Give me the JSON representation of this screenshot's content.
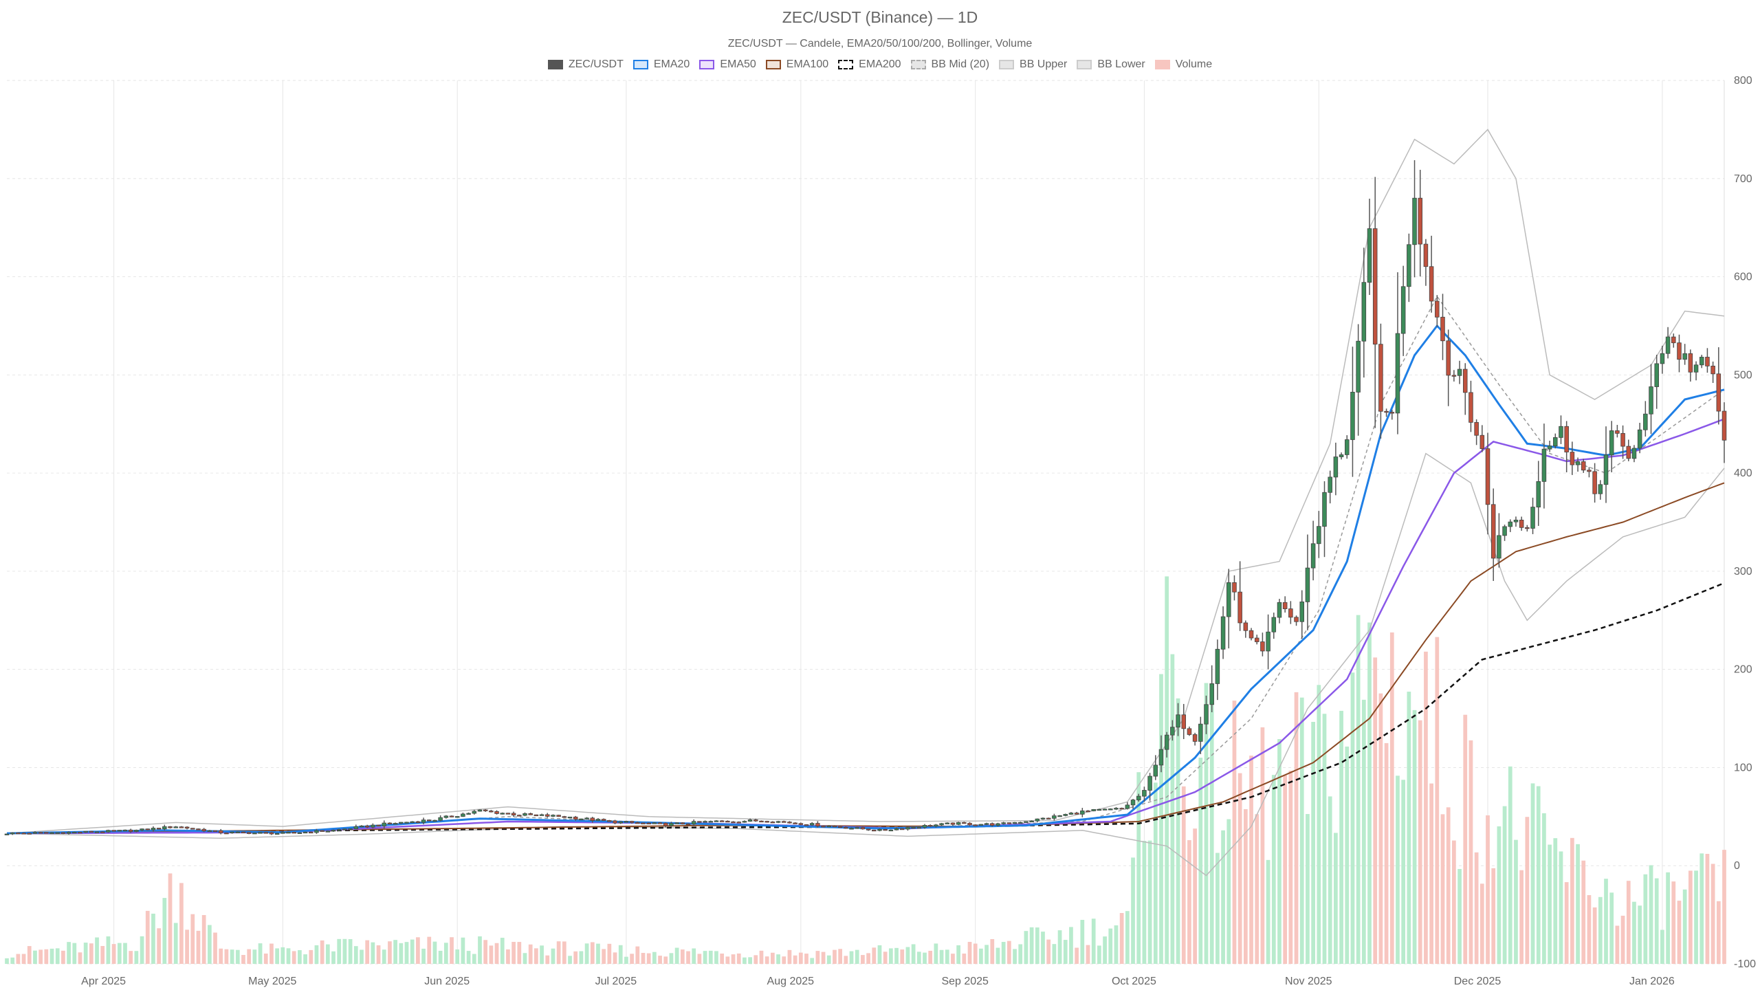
{
  "chart_data": {
    "type": "candlestick",
    "title": "ZEC/USDT (Binance) — 1D",
    "subtitle": "ZEC/USDT — Candele, EMA20/50/100/200, Bollinger, Volume",
    "ylim": [
      -100,
      800
    ],
    "y_ticks": [
      "800",
      "700",
      "600",
      "500",
      "400",
      "300",
      "200",
      "100",
      "0",
      "-100"
    ],
    "y_tick_values": [
      800,
      700,
      600,
      500,
      400,
      300,
      200,
      100,
      0,
      -100
    ],
    "x_range": [
      "2025-03-13",
      "2026-01-12"
    ],
    "x_ticks": [
      {
        "date": "2025-04-01",
        "label": "Apr 2025"
      },
      {
        "date": "2025-05-01",
        "label": "May 2025"
      },
      {
        "date": "2025-06-01",
        "label": "Jun 2025"
      },
      {
        "date": "2025-07-01",
        "label": "Jul 2025"
      },
      {
        "date": "2025-08-01",
        "label": "Aug 2025"
      },
      {
        "date": "2025-09-01",
        "label": "Sep 2025"
      },
      {
        "date": "2025-10-01",
        "label": "Oct 2025"
      },
      {
        "date": "2025-11-01",
        "label": "Nov 2025"
      },
      {
        "date": "2025-12-01",
        "label": "Dec 2025"
      },
      {
        "date": "2026-01-01",
        "label": "Jan 2026"
      }
    ],
    "grid": true,
    "legend_position": "top-center",
    "legend": [
      {
        "label": "ZEC/USDT",
        "swatch_fill": "#555555",
        "swatch_border": "#555555",
        "dashed": false
      },
      {
        "label": "EMA20",
        "swatch_fill": "#d6e8fb",
        "swatch_border": "#1f7fe5",
        "dashed": false
      },
      {
        "label": "EMA50",
        "swatch_fill": "#ede3fb",
        "swatch_border": "#8a58e8",
        "dashed": false
      },
      {
        "label": "EMA100",
        "swatch_fill": "#f1e4da",
        "swatch_border": "#8b4a24",
        "dashed": false
      },
      {
        "label": "EMA200",
        "swatch_fill": "#ffffff",
        "swatch_border": "#111111",
        "dashed": true
      },
      {
        "label": "BB Mid (20)",
        "swatch_fill": "#e6e6e6",
        "swatch_border": "#aaaaaa",
        "dashed": true
      },
      {
        "label": "BB Upper",
        "swatch_fill": "#e6e6e6",
        "swatch_border": "#cccccc",
        "dashed": false
      },
      {
        "label": "BB Lower",
        "swatch_fill": "#e6e6e6",
        "swatch_border": "#cccccc",
        "dashed": false
      },
      {
        "label": "Volume",
        "swatch_fill": "#f7c6c0",
        "swatch_border": "#f7c6c0",
        "dashed": false
      }
    ],
    "colors": {
      "up": "#3d8b5a",
      "down": "#c0523e",
      "wick": "#555555",
      "ema20": "#1f7fe5",
      "ema50": "#8a58e8",
      "ema100": "#8b4a24",
      "ema200": "#111111",
      "bb_mid": "#999999",
      "bb_band": "#bbbbbb",
      "volume_up": "#b8ebcd",
      "volume_down": "#f7c6c0",
      "grid": "#e6e6e6"
    },
    "candle_keypoints": [
      [
        "2025-03-13",
        33
      ],
      [
        "2025-03-25",
        34
      ],
      [
        "2025-04-05",
        36
      ],
      [
        "2025-04-12",
        40
      ],
      [
        "2025-04-20",
        34
      ],
      [
        "2025-05-01",
        33
      ],
      [
        "2025-05-10",
        36
      ],
      [
        "2025-05-20",
        43
      ],
      [
        "2025-05-28",
        47
      ],
      [
        "2025-06-05",
        56
      ],
      [
        "2025-06-12",
        52
      ],
      [
        "2025-06-20",
        50
      ],
      [
        "2025-06-28",
        45
      ],
      [
        "2025-07-08",
        42
      ],
      [
        "2025-07-16",
        45
      ],
      [
        "2025-07-26",
        46
      ],
      [
        "2025-08-05",
        41
      ],
      [
        "2025-08-15",
        36
      ],
      [
        "2025-08-22",
        40
      ],
      [
        "2025-08-28",
        43
      ],
      [
        "2025-09-05",
        42
      ],
      [
        "2025-09-12",
        47
      ],
      [
        "2025-09-20",
        55
      ],
      [
        "2025-09-27",
        58
      ],
      [
        "2025-10-01",
        75
      ],
      [
        "2025-10-04",
        120
      ],
      [
        "2025-10-07",
        150
      ],
      [
        "2025-10-10",
        130
      ],
      [
        "2025-10-13",
        185
      ],
      [
        "2025-10-16",
        290
      ],
      [
        "2025-10-19",
        235
      ],
      [
        "2025-10-22",
        215
      ],
      [
        "2025-10-25",
        270
      ],
      [
        "2025-10-28",
        245
      ],
      [
        "2025-10-31",
        330
      ],
      [
        "2025-11-03",
        395
      ],
      [
        "2025-11-06",
        440
      ],
      [
        "2025-11-08",
        520
      ],
      [
        "2025-11-10",
        640
      ],
      [
        "2025-11-12",
        450
      ],
      [
        "2025-11-14",
        470
      ],
      [
        "2025-11-16",
        600
      ],
      [
        "2025-11-18",
        690
      ],
      [
        "2025-11-20",
        610
      ],
      [
        "2025-11-22",
        560
      ],
      [
        "2025-11-24",
        515
      ],
      [
        "2025-11-27",
        480
      ],
      [
        "2025-11-30",
        420
      ],
      [
        "2025-12-02",
        320
      ],
      [
        "2025-12-05",
        355
      ],
      [
        "2025-12-08",
        345
      ],
      [
        "2025-12-11",
        430
      ],
      [
        "2025-12-14",
        440
      ],
      [
        "2025-12-17",
        410
      ],
      [
        "2025-12-20",
        380
      ],
      [
        "2025-12-23",
        435
      ],
      [
        "2025-12-26",
        420
      ],
      [
        "2025-12-29",
        450
      ],
      [
        "2025-12-31",
        520
      ],
      [
        "2026-01-02",
        540
      ],
      [
        "2026-01-05",
        515
      ],
      [
        "2026-01-08",
        505
      ],
      [
        "2026-01-10",
        500
      ],
      [
        "2026-01-11",
        465
      ],
      [
        "2026-01-12",
        425
      ]
    ],
    "ema20_keypoints": [
      [
        "2025-03-13",
        33
      ],
      [
        "2025-04-10",
        36
      ],
      [
        "2025-05-01",
        34
      ],
      [
        "2025-06-05",
        48
      ],
      [
        "2025-07-05",
        44
      ],
      [
        "2025-08-15",
        38
      ],
      [
        "2025-09-10",
        41
      ],
      [
        "2025-09-28",
        52
      ],
      [
        "2025-10-10",
        110
      ],
      [
        "2025-10-20",
        180
      ],
      [
        "2025-10-31",
        240
      ],
      [
        "2025-11-06",
        310
      ],
      [
        "2025-11-12",
        440
      ],
      [
        "2025-11-18",
        520
      ],
      [
        "2025-11-22",
        550
      ],
      [
        "2025-11-27",
        520
      ],
      [
        "2025-12-03",
        470
      ],
      [
        "2025-12-08",
        430
      ],
      [
        "2025-12-15",
        425
      ],
      [
        "2025-12-22",
        418
      ],
      [
        "2025-12-28",
        425
      ],
      [
        "2026-01-05",
        475
      ],
      [
        "2026-01-12",
        485
      ]
    ],
    "ema50_keypoints": [
      [
        "2025-03-13",
        33
      ],
      [
        "2025-05-01",
        34
      ],
      [
        "2025-06-10",
        45
      ],
      [
        "2025-07-15",
        43
      ],
      [
        "2025-08-20",
        38
      ],
      [
        "2025-09-25",
        45
      ],
      [
        "2025-10-10",
        75
      ],
      [
        "2025-10-25",
        125
      ],
      [
        "2025-11-06",
        190
      ],
      [
        "2025-11-16",
        305
      ],
      [
        "2025-11-25",
        400
      ],
      [
        "2025-12-02",
        432
      ],
      [
        "2025-12-10",
        420
      ],
      [
        "2025-12-15",
        412
      ],
      [
        "2025-12-25",
        418
      ],
      [
        "2026-01-05",
        440
      ],
      [
        "2026-01-12",
        455
      ]
    ],
    "ema100_keypoints": [
      [
        "2025-03-13",
        33
      ],
      [
        "2025-06-01",
        38
      ],
      [
        "2025-07-15",
        41
      ],
      [
        "2025-09-01",
        40
      ],
      [
        "2025-09-30",
        45
      ],
      [
        "2025-10-15",
        65
      ],
      [
        "2025-10-31",
        105
      ],
      [
        "2025-11-10",
        150
      ],
      [
        "2025-11-20",
        230
      ],
      [
        "2025-11-28",
        290
      ],
      [
        "2025-12-06",
        320
      ],
      [
        "2025-12-15",
        335
      ],
      [
        "2025-12-25",
        350
      ],
      [
        "2026-01-05",
        375
      ],
      [
        "2026-01-12",
        390
      ]
    ],
    "ema200_keypoints": [
      [
        "2025-03-13",
        33
      ],
      [
        "2025-06-01",
        37
      ],
      [
        "2025-07-15",
        39
      ],
      [
        "2025-09-01",
        40
      ],
      [
        "2025-09-30",
        43
      ],
      [
        "2025-10-20",
        70
      ],
      [
        "2025-11-05",
        105
      ],
      [
        "2025-11-20",
        160
      ],
      [
        "2025-11-30",
        210
      ],
      [
        "2025-12-10",
        225
      ],
      [
        "2025-12-20",
        240
      ],
      [
        "2025-12-31",
        260
      ],
      [
        "2026-01-12",
        288
      ]
    ],
    "bb_mid_keypoints": [
      [
        "2025-03-13",
        33
      ],
      [
        "2025-05-01",
        34
      ],
      [
        "2025-06-10",
        50
      ],
      [
        "2025-07-10",
        43
      ],
      [
        "2025-08-15",
        38
      ],
      [
        "2025-09-20",
        45
      ],
      [
        "2025-10-05",
        70
      ],
      [
        "2025-10-20",
        150
      ],
      [
        "2025-11-01",
        260
      ],
      [
        "2025-11-12",
        470
      ],
      [
        "2025-11-22",
        580
      ],
      [
        "2025-12-03",
        490
      ],
      [
        "2025-12-12",
        420
      ],
      [
        "2025-12-22",
        400
      ],
      [
        "2026-01-01",
        440
      ],
      [
        "2026-01-12",
        485
      ]
    ],
    "bb_upper_keypoints": [
      [
        "2025-03-13",
        33
      ],
      [
        "2025-04-12",
        44
      ],
      [
        "2025-05-01",
        40
      ],
      [
        "2025-06-10",
        60
      ],
      [
        "2025-07-05",
        50
      ],
      [
        "2025-08-15",
        45
      ],
      [
        "2025-09-15",
        46
      ],
      [
        "2025-09-28",
        65
      ],
      [
        "2025-10-08",
        150
      ],
      [
        "2025-10-16",
        300
      ],
      [
        "2025-10-25",
        310
      ],
      [
        "2025-11-03",
        430
      ],
      [
        "2025-11-10",
        650
      ],
      [
        "2025-11-18",
        740
      ],
      [
        "2025-11-25",
        715
      ],
      [
        "2025-12-01",
        750
      ],
      [
        "2025-12-06",
        700
      ],
      [
        "2025-12-12",
        500
      ],
      [
        "2025-12-20",
        475
      ],
      [
        "2025-12-30",
        510
      ],
      [
        "2026-01-05",
        565
      ],
      [
        "2026-01-12",
        560
      ]
    ],
    "bb_lower_keypoints": [
      [
        "2025-03-13",
        33
      ],
      [
        "2025-04-20",
        28
      ],
      [
        "2025-05-15",
        32
      ],
      [
        "2025-06-20",
        40
      ],
      [
        "2025-07-20",
        38
      ],
      [
        "2025-08-20",
        30
      ],
      [
        "2025-09-20",
        36
      ],
      [
        "2025-10-05",
        20
      ],
      [
        "2025-10-12",
        -10
      ],
      [
        "2025-10-20",
        40
      ],
      [
        "2025-10-30",
        160
      ],
      [
        "2025-11-10",
        240
      ],
      [
        "2025-11-20",
        420
      ],
      [
        "2025-11-28",
        390
      ],
      [
        "2025-12-04",
        290
      ],
      [
        "2025-12-08",
        250
      ],
      [
        "2025-12-15",
        290
      ],
      [
        "2025-12-25",
        335
      ],
      [
        "2026-01-05",
        355
      ],
      [
        "2026-01-12",
        405
      ]
    ],
    "volume_keypoints": [
      [
        "2025-03-13",
        12
      ],
      [
        "2025-03-25",
        18
      ],
      [
        "2025-04-05",
        25
      ],
      [
        "2025-04-12",
        90
      ],
      [
        "2025-04-20",
        18
      ],
      [
        "2025-05-01",
        15
      ],
      [
        "2025-05-10",
        20
      ],
      [
        "2025-06-01",
        22
      ],
      [
        "2025-07-01",
        15
      ],
      [
        "2025-08-01",
        12
      ],
      [
        "2025-09-01",
        18
      ],
      [
        "2025-09-28",
        45
      ],
      [
        "2025-10-04",
        350
      ],
      [
        "2025-10-10",
        220
      ],
      [
        "2025-10-20",
        190
      ],
      [
        "2025-11-01",
        220
      ],
      [
        "2025-11-10",
        330
      ],
      [
        "2025-11-18",
        300
      ],
      [
        "2025-11-28",
        190
      ],
      [
        "2025-12-05",
        160
      ],
      [
        "2025-12-15",
        110
      ],
      [
        "2025-12-25",
        70
      ],
      [
        "2026-01-05",
        80
      ],
      [
        "2026-01-12",
        90
      ]
    ]
  }
}
